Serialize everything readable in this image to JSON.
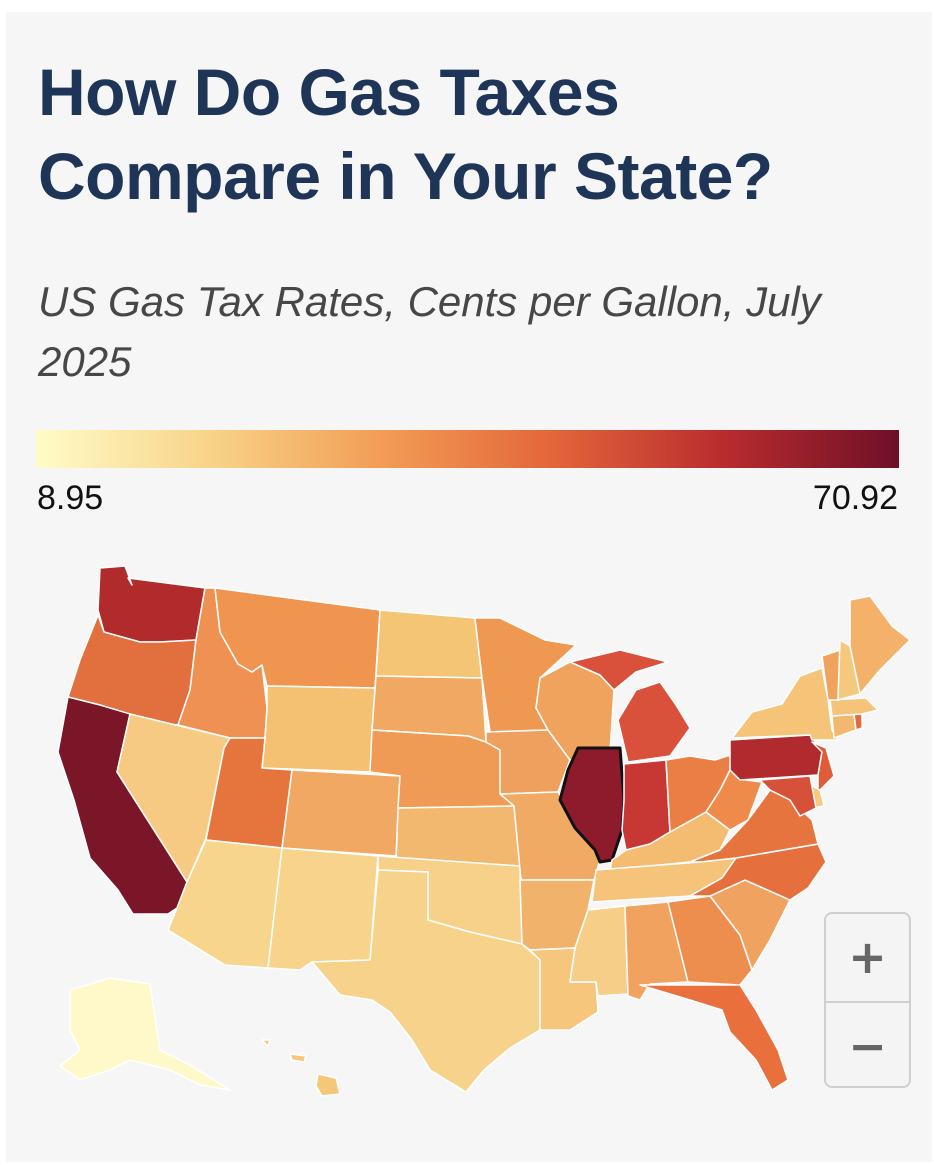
{
  "title": "How Do Gas Taxes Compare in Your State?",
  "subtitle": "US Gas Tax Rates, Cents per Gallon, July 2025",
  "legend": {
    "min_label": "8.95",
    "max_label": "70.92",
    "min_value": 8.95,
    "max_value": 70.92,
    "colors": [
      "#fffcc8",
      "#f7d489",
      "#f29d55",
      "#e3653a",
      "#b82b2e",
      "#6e1027"
    ]
  },
  "selected_state": "IL",
  "zoom": {
    "in_label": "+",
    "out_label": "−"
  },
  "states": [
    {
      "id": "WA",
      "color": "#b12a2c"
    },
    {
      "id": "OR",
      "color": "#e2703e"
    },
    {
      "id": "CA",
      "color": "#7b1528"
    },
    {
      "id": "ID",
      "color": "#ef9152"
    },
    {
      "id": "NV",
      "color": "#f6ca82"
    },
    {
      "id": "MT",
      "color": "#ef9550"
    },
    {
      "id": "WY",
      "color": "#f4c072"
    },
    {
      "id": "UT",
      "color": "#e5753d"
    },
    {
      "id": "AZ",
      "color": "#f7d58d"
    },
    {
      "id": "CO",
      "color": "#f0a862"
    },
    {
      "id": "NM",
      "color": "#f7d38b"
    },
    {
      "id": "ND",
      "color": "#f5c576"
    },
    {
      "id": "SD",
      "color": "#f1a862"
    },
    {
      "id": "NE",
      "color": "#ef9a55"
    },
    {
      "id": "KS",
      "color": "#f3b870"
    },
    {
      "id": "OK",
      "color": "#f7d18a"
    },
    {
      "id": "TX",
      "color": "#f7d28a"
    },
    {
      "id": "MN",
      "color": "#ef9851"
    },
    {
      "id": "IA",
      "color": "#f0a05e"
    },
    {
      "id": "MO",
      "color": "#f0aa64"
    },
    {
      "id": "AR",
      "color": "#f1b36c"
    },
    {
      "id": "LA",
      "color": "#f5c67c"
    },
    {
      "id": "WI",
      "color": "#f0a35d"
    },
    {
      "id": "IL",
      "color": "#8d1b2b"
    },
    {
      "id": "MI",
      "color": "#d9513a"
    },
    {
      "id": "IN",
      "color": "#c73834"
    },
    {
      "id": "KY",
      "color": "#f4bc71"
    },
    {
      "id": "TN",
      "color": "#f5c47a"
    },
    {
      "id": "MS",
      "color": "#f6ce88"
    },
    {
      "id": "AL",
      "color": "#f1a25e"
    },
    {
      "id": "GA",
      "color": "#ed8e4e"
    },
    {
      "id": "FL",
      "color": "#e96f3c"
    },
    {
      "id": "SC",
      "color": "#f0a260"
    },
    {
      "id": "NC",
      "color": "#e6703d"
    },
    {
      "id": "VA",
      "color": "#e6743f"
    },
    {
      "id": "WV",
      "color": "#ee8b4b"
    },
    {
      "id": "OH",
      "color": "#ea7f45"
    },
    {
      "id": "PA",
      "color": "#b12a2d"
    },
    {
      "id": "NY",
      "color": "#f5c478"
    },
    {
      "id": "NJ",
      "color": "#e05b3a"
    },
    {
      "id": "DE",
      "color": "#f5c97e"
    },
    {
      "id": "MD",
      "color": "#d7503a"
    },
    {
      "id": "CT",
      "color": "#f3b86f"
    },
    {
      "id": "RI",
      "color": "#e4693c"
    },
    {
      "id": "MA",
      "color": "#f5c47a"
    },
    {
      "id": "VT",
      "color": "#f0a35d"
    },
    {
      "id": "NH",
      "color": "#f5c97d"
    },
    {
      "id": "ME",
      "color": "#f3b16a"
    },
    {
      "id": "AK",
      "color": "#fff9c9"
    },
    {
      "id": "HI",
      "color": "#f5c779"
    }
  ]
}
